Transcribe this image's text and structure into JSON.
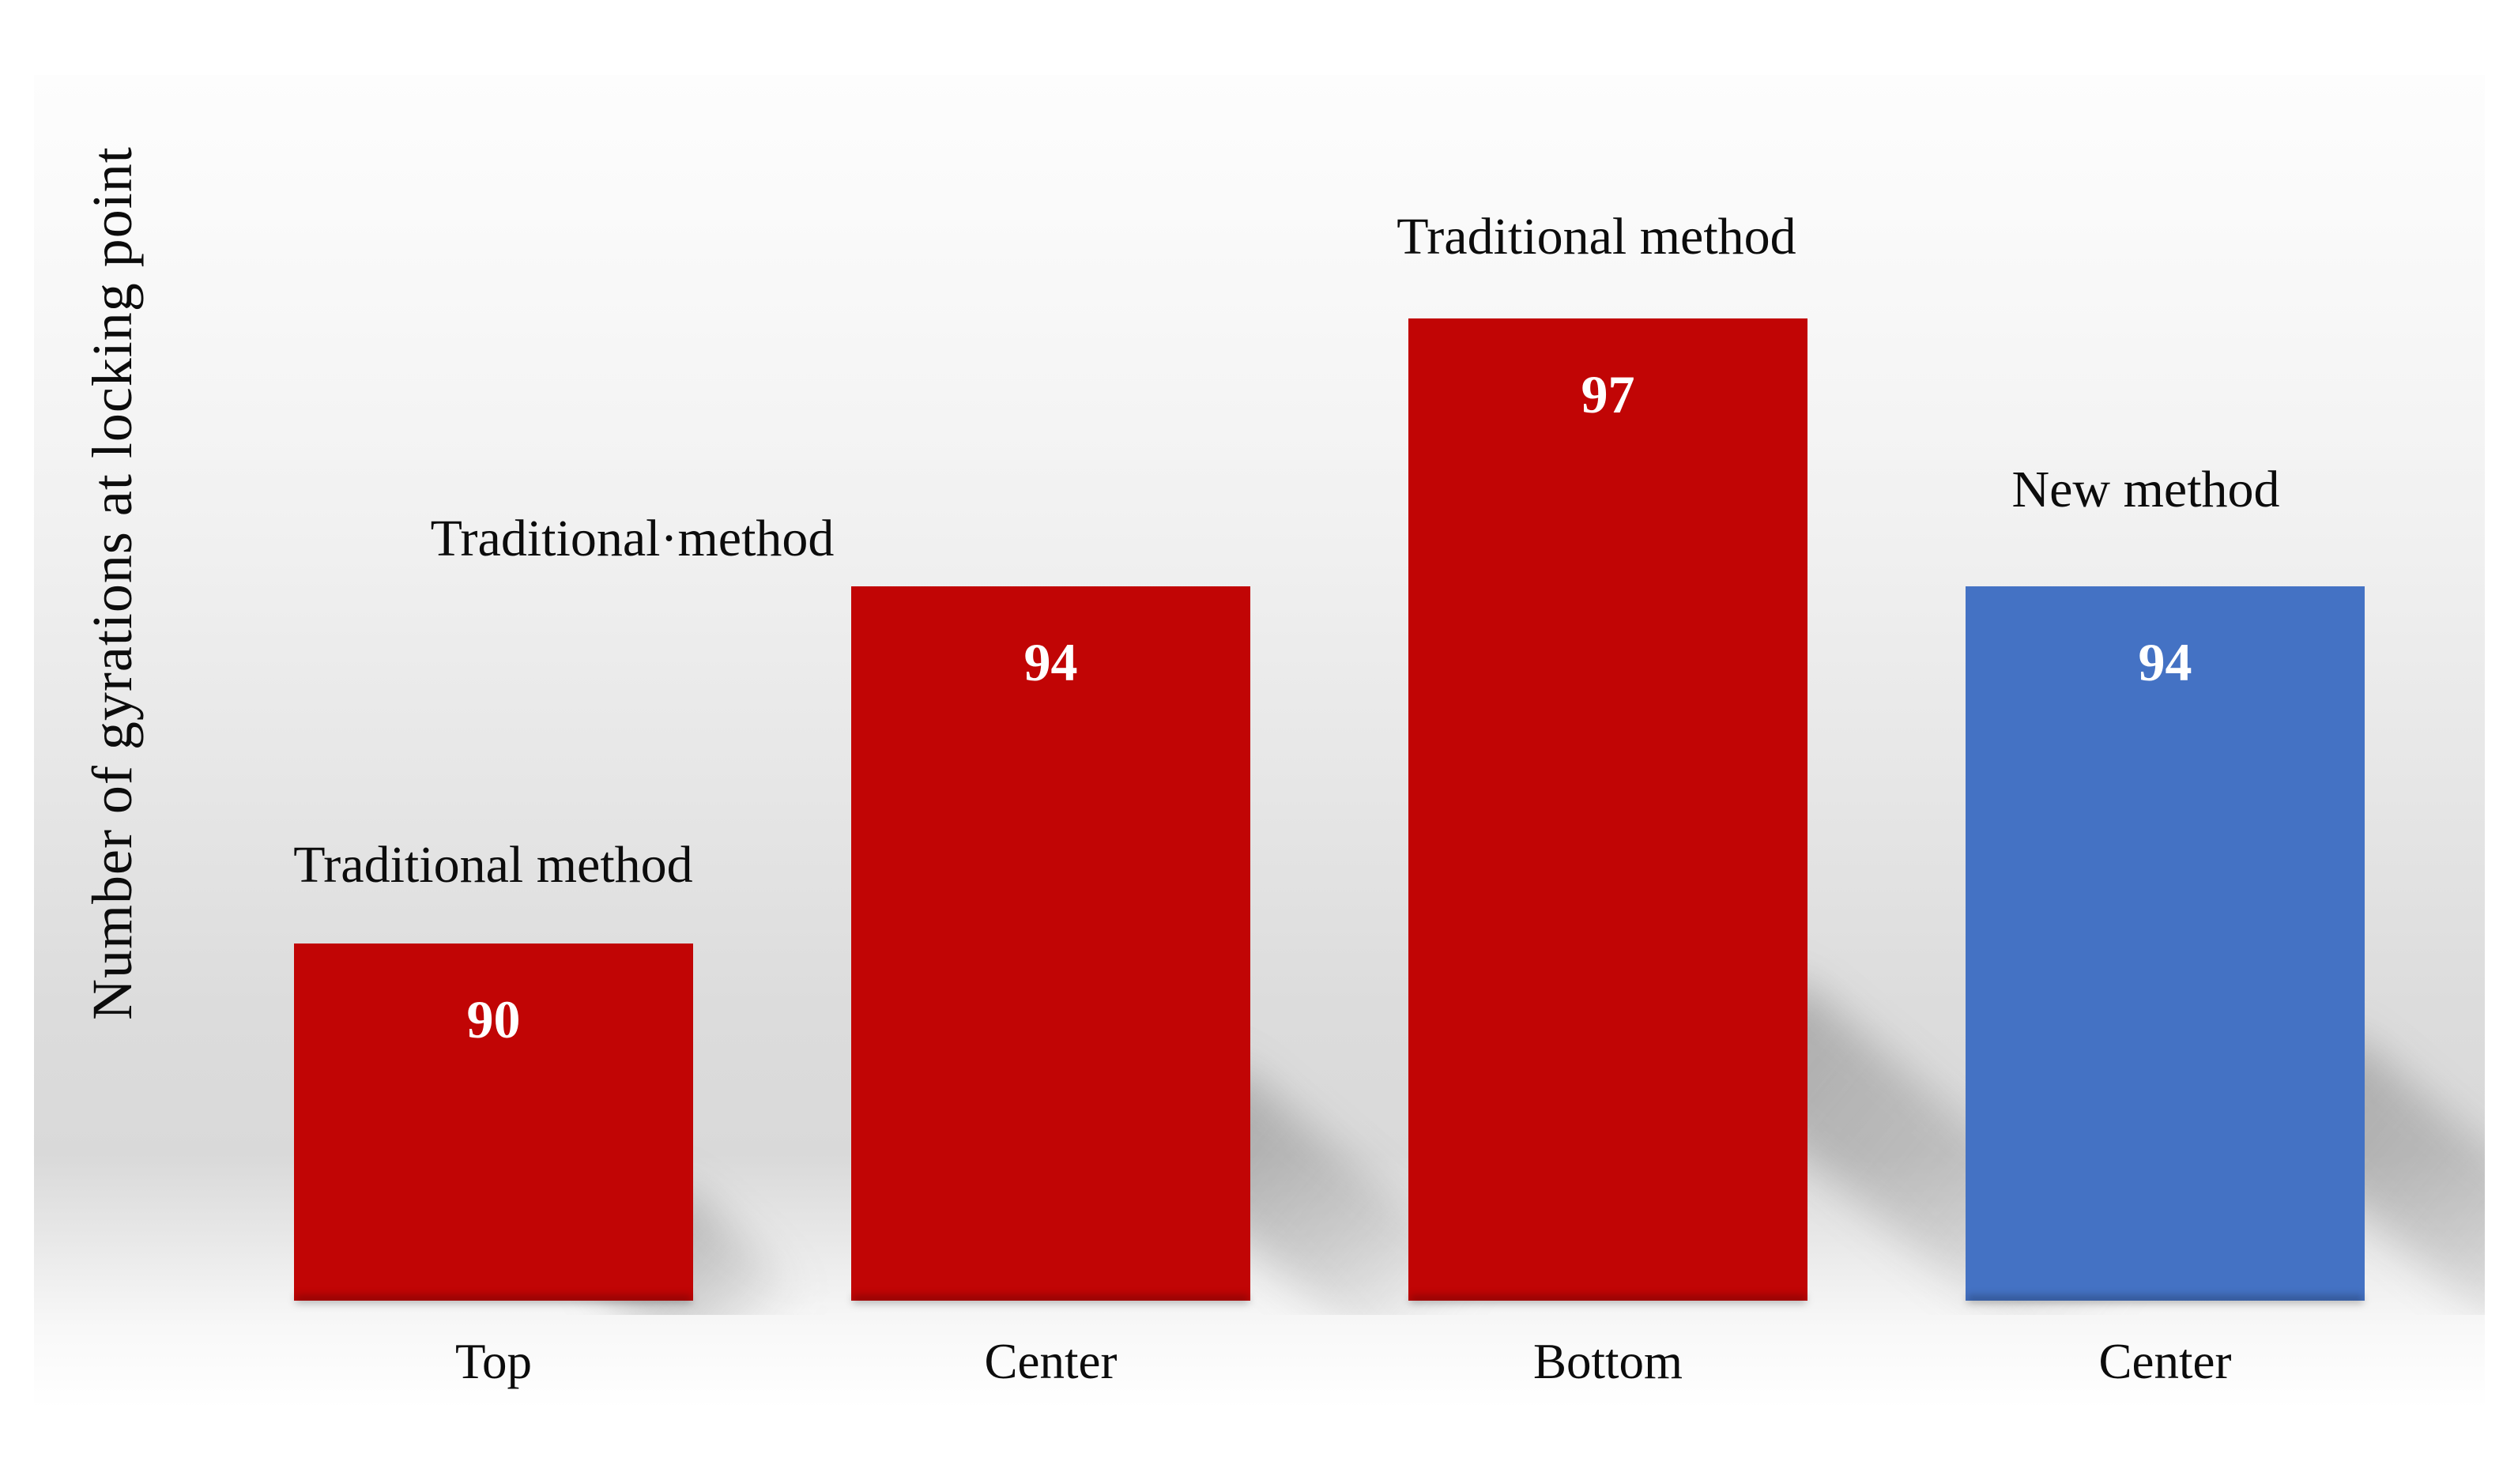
{
  "chart_data": {
    "type": "bar",
    "title": "",
    "ylabel": "Number of gyrations at locking point",
    "xlabel": "",
    "categories": [
      "Top",
      "Center",
      "Bottom",
      "Center"
    ],
    "values": [
      90,
      94,
      97,
      94
    ],
    "series": [
      {
        "category": "Top",
        "label": "Traditional method",
        "value": 90,
        "color": "#c10505"
      },
      {
        "category": "Center",
        "label": "Traditional·method",
        "value": 94,
        "color": "#c10505"
      },
      {
        "category": "Bottom",
        "label": "Traditional method",
        "value": 97,
        "color": "#c10505"
      },
      {
        "category": "Center",
        "label": "New method",
        "value": 94,
        "color": "#4472c4"
      }
    ],
    "axis_min": 86,
    "grid": false,
    "legend_position": "none",
    "value_label_color": "#ffffff",
    "colors": {
      "traditional_method_bar": "#c10505",
      "new_method_bar": "#4472c4",
      "label_text": "#0c0c0c",
      "panel_gradient_mid": "#d9d9d9"
    }
  }
}
